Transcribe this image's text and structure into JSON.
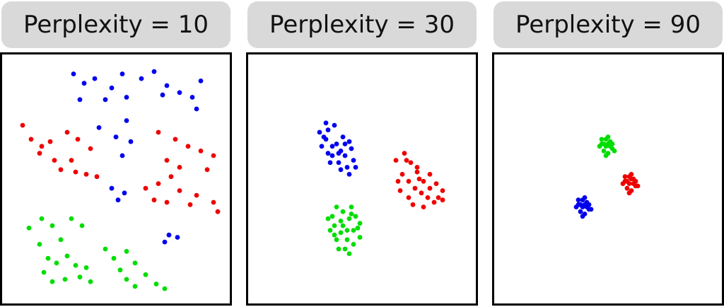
{
  "colors": {
    "blue": "#0000ee",
    "red": "#ee0000",
    "green": "#00dd00"
  },
  "chart_data": [
    {
      "type": "scatter",
      "title": "Perplexity = 10",
      "xlim": [
        0,
        100
      ],
      "ylim": [
        0,
        100
      ],
      "grid": false,
      "series": [
        {
          "color": "blue",
          "points": [
            [
              30,
              95
            ],
            [
              35,
              91
            ],
            [
              40,
              93
            ],
            [
              48,
              89
            ],
            [
              53,
              95
            ],
            [
              62,
              93
            ],
            [
              68,
              96
            ],
            [
              74,
              90
            ],
            [
              80,
              87
            ],
            [
              86,
              85
            ],
            [
              90,
              92
            ],
            [
              33,
              84
            ],
            [
              45,
              84
            ],
            [
              55,
              85
            ],
            [
              72,
              86
            ],
            [
              88,
              80
            ],
            [
              42,
              72
            ],
            [
              50,
              68
            ],
            [
              55,
              75
            ],
            [
              53,
              60
            ],
            [
              57,
              66
            ],
            [
              48,
              46
            ],
            [
              54,
              44
            ],
            [
              51,
              41
            ],
            [
              75,
              26
            ],
            [
              79,
              25
            ],
            [
              73,
              23
            ]
          ]
        },
        {
          "color": "red",
          "points": [
            [
              6,
              73
            ],
            [
              10,
              67
            ],
            [
              15,
              64
            ],
            [
              19,
              66
            ],
            [
              14,
              61
            ],
            [
              21,
              58
            ],
            [
              27,
              70
            ],
            [
              32,
              67
            ],
            [
              38,
              63
            ],
            [
              24,
              54
            ],
            [
              31,
              53
            ],
            [
              36,
              52
            ],
            [
              41,
              51
            ],
            [
              29,
              58
            ],
            [
              70,
              70
            ],
            [
              78,
              67
            ],
            [
              84,
              64
            ],
            [
              90,
              62
            ],
            [
              96,
              60
            ],
            [
              93,
              54
            ],
            [
              74,
              58
            ],
            [
              80,
              55
            ],
            [
              76,
              51
            ],
            [
              70,
              48
            ],
            [
              80,
              45
            ],
            [
              88,
              43
            ],
            [
              64,
              46
            ],
            [
              68,
              41
            ],
            [
              85,
              39
            ],
            [
              74,
              40
            ],
            [
              96,
              40
            ],
            [
              98,
              36
            ]
          ]
        },
        {
          "color": "green",
          "points": [
            [
              9,
              29
            ],
            [
              15,
              33
            ],
            [
              20,
              30
            ],
            [
              24,
              24
            ],
            [
              29,
              33
            ],
            [
              34,
              30
            ],
            [
              14,
              22
            ],
            [
              18,
              16
            ],
            [
              22,
              14
            ],
            [
              27,
              17
            ],
            [
              31,
              13
            ],
            [
              16,
              10
            ],
            [
              20,
              6
            ],
            [
              26,
              7
            ],
            [
              33,
              8
            ],
            [
              38,
              6
            ],
            [
              45,
              20
            ],
            [
              49,
              16
            ],
            [
              55,
              19
            ],
            [
              59,
              14
            ],
            [
              52,
              11
            ],
            [
              55,
              7
            ],
            [
              59,
              4
            ],
            [
              64,
              9
            ],
            [
              69,
              5
            ],
            [
              73,
              3
            ],
            [
              36,
              12
            ]
          ]
        }
      ]
    },
    {
      "type": "scatter",
      "title": "Perplexity = 30",
      "xlim": [
        0,
        100
      ],
      "ylim": [
        0,
        100
      ],
      "grid": false,
      "series": [
        {
          "color": "blue",
          "points": [
            [
              30,
              70
            ],
            [
              33,
              67
            ],
            [
              36,
              64
            ],
            [
              39,
              61
            ],
            [
              42,
              60
            ],
            [
              45,
              63
            ],
            [
              41,
              68
            ],
            [
              37,
              73
            ],
            [
              34,
              71
            ],
            [
              31,
              64
            ],
            [
              34,
              61
            ],
            [
              39,
              57
            ],
            [
              43,
              55
            ],
            [
              46,
              58
            ],
            [
              40,
              54
            ],
            [
              44,
              52
            ],
            [
              47,
              55
            ],
            [
              38,
              65
            ],
            [
              32,
              68
            ],
            [
              36,
              60
            ],
            [
              42,
              65
            ],
            [
              35,
              57
            ],
            [
              40,
              62
            ],
            [
              33,
              74
            ],
            [
              44,
              66
            ]
          ]
        },
        {
          "color": "red",
          "points": [
            [
              66,
              58
            ],
            [
              70,
              61
            ],
            [
              73,
              57
            ],
            [
              76,
              53
            ],
            [
              79,
              49
            ],
            [
              82,
              52
            ],
            [
              85,
              48
            ],
            [
              88,
              45
            ],
            [
              72,
              49
            ],
            [
              75,
              46
            ],
            [
              78,
              44
            ],
            [
              81,
              42
            ],
            [
              84,
              40
            ],
            [
              69,
              52
            ],
            [
              72,
              42
            ],
            [
              68,
              45
            ],
            [
              74,
              39
            ],
            [
              79,
              38
            ],
            [
              86,
              42
            ],
            [
              76,
              55
            ],
            [
              71,
              58
            ],
            [
              82,
              46
            ],
            [
              77,
              50
            ],
            [
              67,
              49
            ],
            [
              88,
              41
            ]
          ]
        },
        {
          "color": "green",
          "points": [
            [
              34,
              33
            ],
            [
              37,
              30
            ],
            [
              40,
              27
            ],
            [
              43,
              24
            ],
            [
              46,
              28
            ],
            [
              49,
              31
            ],
            [
              45,
              35
            ],
            [
              41,
              36
            ],
            [
              38,
              38
            ],
            [
              35,
              28
            ],
            [
              38,
              24
            ],
            [
              42,
              20
            ],
            [
              46,
              22
            ],
            [
              49,
              25
            ],
            [
              44,
              18
            ],
            [
              41,
              30
            ],
            [
              36,
              34
            ],
            [
              47,
              34
            ],
            [
              43,
              28
            ],
            [
              39,
              20
            ],
            [
              45,
              38
            ],
            [
              48,
              29
            ],
            [
              40,
              32
            ],
            [
              37,
              26
            ],
            [
              44,
              33
            ]
          ]
        }
      ]
    },
    {
      "type": "scatter",
      "title": "Perplexity = 90",
      "xlim": [
        0,
        100
      ],
      "ylim": [
        0,
        100
      ],
      "grid": false,
      "series": [
        {
          "color": "blue",
          "points": [
            [
              36,
              39
            ],
            [
              38,
              41
            ],
            [
              40,
              40
            ],
            [
              41,
              37
            ],
            [
              39,
              35
            ],
            [
              37,
              36
            ],
            [
              35,
              38
            ],
            [
              38,
              38
            ],
            [
              40,
              38
            ],
            [
              39,
              42
            ],
            [
              36,
              41
            ],
            [
              41,
              39
            ],
            [
              38,
              34
            ],
            [
              37,
              39
            ],
            [
              42,
              37
            ],
            [
              39,
              39
            ]
          ]
        },
        {
          "color": "green",
          "points": [
            [
              47,
              65
            ],
            [
              49,
              67
            ],
            [
              51,
              66
            ],
            [
              52,
              63
            ],
            [
              50,
              61
            ],
            [
              48,
              62
            ],
            [
              46,
              64
            ],
            [
              49,
              64
            ],
            [
              51,
              64
            ],
            [
              50,
              68
            ],
            [
              47,
              67
            ],
            [
              52,
              65
            ],
            [
              49,
              60
            ],
            [
              48,
              65
            ],
            [
              53,
              62
            ],
            [
              50,
              65
            ]
          ]
        },
        {
          "color": "red",
          "points": [
            [
              58,
              49
            ],
            [
              60,
              51
            ],
            [
              62,
              50
            ],
            [
              63,
              47
            ],
            [
              61,
              45
            ],
            [
              59,
              46
            ],
            [
              57,
              48
            ],
            [
              60,
              48
            ],
            [
              62,
              48
            ],
            [
              61,
              52
            ],
            [
              58,
              51
            ],
            [
              63,
              49
            ],
            [
              60,
              44
            ],
            [
              59,
              49
            ],
            [
              64,
              47
            ],
            [
              61,
              50
            ]
          ]
        }
      ]
    }
  ]
}
